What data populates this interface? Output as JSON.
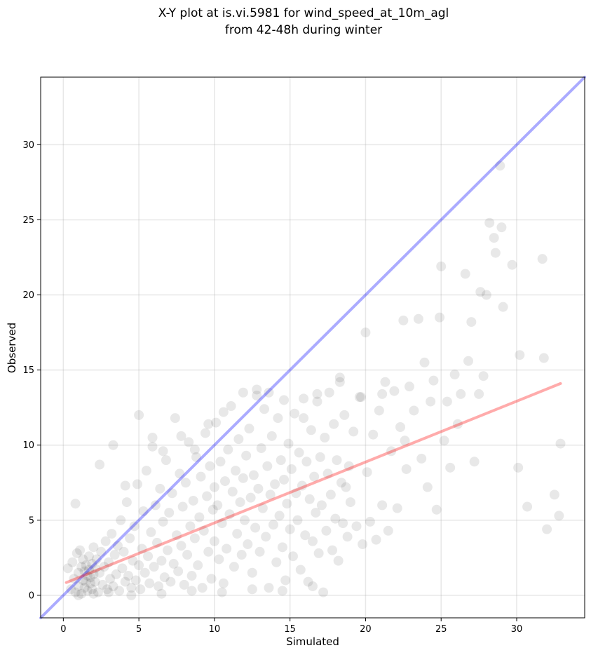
{
  "chart_data": {
    "type": "scatter",
    "title_line1": "X-Y plot at is.vi.5981 for wind_speed_at_10m_agl",
    "title_line2": "from 42-48h during winter",
    "xlabel": "Simulated",
    "ylabel": "Observed",
    "xlim": [
      -1.5,
      34.5
    ],
    "ylim": [
      -1.5,
      34.5
    ],
    "xticks": [
      0,
      5,
      10,
      15,
      20,
      25,
      30
    ],
    "yticks": [
      0,
      5,
      10,
      15,
      20,
      25,
      30
    ],
    "grid": true,
    "point_color": "#000000",
    "point_opacity": 0.09,
    "identity_line": {
      "color": "#0000ff",
      "opacity": 0.33,
      "x": [
        -1.5,
        34.5
      ],
      "y": [
        -1.5,
        34.5
      ]
    },
    "fit_line": {
      "color": "#ff0000",
      "opacity": 0.33,
      "x": [
        0.2,
        32.9
      ],
      "y": [
        0.85,
        14.1
      ]
    },
    "points": [
      [
        0.3,
        1.8
      ],
      [
        0.5,
        0.4
      ],
      [
        0.6,
        2.2
      ],
      [
        0.7,
        1.1
      ],
      [
        0.8,
        0.2
      ],
      [
        0.9,
        2.8
      ],
      [
        1.0,
        1.5
      ],
      [
        1.0,
        0.6
      ],
      [
        1.1,
        3.0
      ],
      [
        1.2,
        1.9
      ],
      [
        1.2,
        0.1
      ],
      [
        1.3,
        2.4
      ],
      [
        1.3,
        1.0
      ],
      [
        1.4,
        0.5
      ],
      [
        1.4,
        1.6
      ],
      [
        1.5,
        2.0
      ],
      [
        1.5,
        0.9
      ],
      [
        1.6,
        1.3
      ],
      [
        1.6,
        0.3
      ],
      [
        1.7,
        2.6
      ],
      [
        1.7,
        1.7
      ],
      [
        1.8,
        0.8
      ],
      [
        1.8,
        1.2
      ],
      [
        1.9,
        2.1
      ],
      [
        1.9,
        0.4
      ],
      [
        2.0,
        1.4
      ],
      [
        2.0,
        3.2
      ],
      [
        2.1,
        0.9
      ],
      [
        2.1,
        1.8
      ],
      [
        2.2,
        2.4
      ],
      [
        2.3,
        0.2
      ],
      [
        2.4,
        1.5
      ],
      [
        2.5,
        2.9
      ],
      [
        2.6,
        0.7
      ],
      [
        2.7,
        1.9
      ],
      [
        2.8,
        3.6
      ],
      [
        2.9,
        0.4
      ],
      [
        3.0,
        2.2
      ],
      [
        3.1,
        1.1
      ],
      [
        3.2,
        4.1
      ],
      [
        3.3,
        0.6
      ],
      [
        3.4,
        2.7
      ],
      [
        3.5,
        1.4
      ],
      [
        3.6,
        3.3
      ],
      [
        3.7,
        0.3
      ],
      [
        3.8,
        5.0
      ],
      [
        3.9,
        1.8
      ],
      [
        4.0,
        2.9
      ],
      [
        4.1,
        0.9
      ],
      [
        4.2,
        6.2
      ],
      [
        4.3,
        1.3
      ],
      [
        4.4,
        3.8
      ],
      [
        4.5,
        0.5
      ],
      [
        4.6,
        2.3
      ],
      [
        4.7,
        4.6
      ],
      [
        4.8,
        1.0
      ],
      [
        4.9,
        7.4
      ],
      [
        5.0,
        2.0
      ],
      [
        5.0,
        12.0
      ],
      [
        5.1,
        0.4
      ],
      [
        5.2,
        3.1
      ],
      [
        5.3,
        5.6
      ],
      [
        5.4,
        1.5
      ],
      [
        5.5,
        8.3
      ],
      [
        5.6,
        2.6
      ],
      [
        5.7,
        0.8
      ],
      [
        5.8,
        4.2
      ],
      [
        5.9,
        9.9
      ],
      [
        6.0,
        1.9
      ],
      [
        6.1,
        6.0
      ],
      [
        6.2,
        3.5
      ],
      [
        6.3,
        0.6
      ],
      [
        6.4,
        7.1
      ],
      [
        6.5,
        2.3
      ],
      [
        6.6,
        4.9
      ],
      [
        6.7,
        1.2
      ],
      [
        6.8,
        9.0
      ],
      [
        6.9,
        3.0
      ],
      [
        7.0,
        5.5
      ],
      [
        7.1,
        0.9
      ],
      [
        7.2,
        6.8
      ],
      [
        7.3,
        2.1
      ],
      [
        7.4,
        11.8
      ],
      [
        7.5,
        4.0
      ],
      [
        7.6,
        1.6
      ],
      [
        7.7,
        8.1
      ],
      [
        7.8,
        3.3
      ],
      [
        7.9,
        5.9
      ],
      [
        8.0,
        0.7
      ],
      [
        8.1,
        7.5
      ],
      [
        8.2,
        2.7
      ],
      [
        8.3,
        10.2
      ],
      [
        8.4,
        4.6
      ],
      [
        8.5,
        1.3
      ],
      [
        8.6,
        6.3
      ],
      [
        8.7,
        3.8
      ],
      [
        8.8,
        9.2
      ],
      [
        8.9,
        2.0
      ],
      [
        9.0,
        5.2
      ],
      [
        9.1,
        7.9
      ],
      [
        9.2,
        0.5
      ],
      [
        9.3,
        4.3
      ],
      [
        9.4,
        10.8
      ],
      [
        9.5,
        6.6
      ],
      [
        9.6,
        2.9
      ],
      [
        9.7,
        8.6
      ],
      [
        9.8,
        1.1
      ],
      [
        9.9,
        5.7
      ],
      [
        10.0,
        7.2
      ],
      [
        10.0,
        3.6
      ],
      [
        10.1,
        11.5
      ],
      [
        10.2,
        6.0
      ],
      [
        10.3,
        2.4
      ],
      [
        10.4,
        8.9
      ],
      [
        10.5,
        4.8
      ],
      [
        10.6,
        0.8
      ],
      [
        10.7,
        7.6
      ],
      [
        10.8,
        3.1
      ],
      [
        10.9,
        9.7
      ],
      [
        11.0,
        5.4
      ],
      [
        11.1,
        12.6
      ],
      [
        11.2,
        6.9
      ],
      [
        11.3,
        1.9
      ],
      [
        11.4,
        8.3
      ],
      [
        11.5,
        4.1
      ],
      [
        11.6,
        10.4
      ],
      [
        11.7,
        6.2
      ],
      [
        11.8,
        2.7
      ],
      [
        11.9,
        7.8
      ],
      [
        12.0,
        5.0
      ],
      [
        12.1,
        9.3
      ],
      [
        12.2,
        3.4
      ],
      [
        12.3,
        11.1
      ],
      [
        12.4,
        6.5
      ],
      [
        12.5,
        1.5
      ],
      [
        12.6,
        8.0
      ],
      [
        12.7,
        4.5
      ],
      [
        12.8,
        13.3
      ],
      [
        12.9,
        7.1
      ],
      [
        13.0,
        2.9
      ],
      [
        13.1,
        9.8
      ],
      [
        13.2,
        5.8
      ],
      [
        13.3,
        12.4
      ],
      [
        13.4,
        3.9
      ],
      [
        13.5,
        8.6
      ],
      [
        13.6,
        0.5
      ],
      [
        13.7,
        6.7
      ],
      [
        13.8,
        10.6
      ],
      [
        13.9,
        4.7
      ],
      [
        14.0,
        7.4
      ],
      [
        14.1,
        2.2
      ],
      [
        14.2,
        11.8
      ],
      [
        14.3,
        5.3
      ],
      [
        14.4,
        9.0
      ],
      [
        14.5,
        3.2
      ],
      [
        14.6,
        7.7
      ],
      [
        14.7,
        1.0
      ],
      [
        14.8,
        6.1
      ],
      [
        14.9,
        10.1
      ],
      [
        15.0,
        4.4
      ],
      [
        15.1,
        8.4
      ],
      [
        15.2,
        2.6
      ],
      [
        15.3,
        12.1
      ],
      [
        15.4,
        6.8
      ],
      [
        15.5,
        5.0
      ],
      [
        15.6,
        9.5
      ],
      [
        15.7,
        1.7
      ],
      [
        15.8,
        7.3
      ],
      [
        15.9,
        13.1
      ],
      [
        16.0,
        4.0
      ],
      [
        16.1,
        8.9
      ],
      [
        16.2,
        0.9
      ],
      [
        16.3,
        6.4
      ],
      [
        16.4,
        11.0
      ],
      [
        16.5,
        3.6
      ],
      [
        16.6,
        7.9
      ],
      [
        16.7,
        5.5
      ],
      [
        16.8,
        12.9
      ],
      [
        16.9,
        2.8
      ],
      [
        17.0,
        9.2
      ],
      [
        17.1,
        6.0
      ],
      [
        17.2,
        0.2
      ],
      [
        17.3,
        10.5
      ],
      [
        17.4,
        4.3
      ],
      [
        17.5,
        8.1
      ],
      [
        17.6,
        13.5
      ],
      [
        17.7,
        6.7
      ],
      [
        17.8,
        3.0
      ],
      [
        17.9,
        11.4
      ],
      [
        18.0,
        5.1
      ],
      [
        18.1,
        9.0
      ],
      [
        18.2,
        2.3
      ],
      [
        18.3,
        14.5
      ],
      [
        18.4,
        7.5
      ],
      [
        18.5,
        4.8
      ],
      [
        18.6,
        12.0
      ],
      [
        18.7,
        7.2
      ],
      [
        18.8,
        3.9
      ],
      [
        18.9,
        8.6
      ],
      [
        19.0,
        6.2
      ],
      [
        19.2,
        10.9
      ],
      [
        19.4,
        4.6
      ],
      [
        19.6,
        13.2
      ],
      [
        19.8,
        3.4
      ],
      [
        20.0,
        17.5
      ],
      [
        20.1,
        8.2
      ],
      [
        20.3,
        4.9
      ],
      [
        20.5,
        10.7
      ],
      [
        20.7,
        3.7
      ],
      [
        20.9,
        12.3
      ],
      [
        21.1,
        6.0
      ],
      [
        21.3,
        14.2
      ],
      [
        21.5,
        4.3
      ],
      [
        21.7,
        9.6
      ],
      [
        21.9,
        13.6
      ],
      [
        22.1,
        5.8
      ],
      [
        22.3,
        11.2
      ],
      [
        22.5,
        18.3
      ],
      [
        22.7,
        8.4
      ],
      [
        22.9,
        13.9
      ],
      [
        23.2,
        12.3
      ],
      [
        23.5,
        18.4
      ],
      [
        23.7,
        9.1
      ],
      [
        23.9,
        15.5
      ],
      [
        24.1,
        7.2
      ],
      [
        24.3,
        12.9
      ],
      [
        24.5,
        14.3
      ],
      [
        24.7,
        5.7
      ],
      [
        24.9,
        18.5
      ],
      [
        25.0,
        21.9
      ],
      [
        25.2,
        10.3
      ],
      [
        25.4,
        12.9
      ],
      [
        25.6,
        8.5
      ],
      [
        25.9,
        14.7
      ],
      [
        26.1,
        11.4
      ],
      [
        26.3,
        13.4
      ],
      [
        26.6,
        21.4
      ],
      [
        26.8,
        15.6
      ],
      [
        27.0,
        18.2
      ],
      [
        27.2,
        8.9
      ],
      [
        27.5,
        13.4
      ],
      [
        27.6,
        20.2
      ],
      [
        27.8,
        14.6
      ],
      [
        28.0,
        20.0
      ],
      [
        28.2,
        24.8
      ],
      [
        28.5,
        23.8
      ],
      [
        28.6,
        22.8
      ],
      [
        28.9,
        28.6
      ],
      [
        29.0,
        24.5
      ],
      [
        29.1,
        19.2
      ],
      [
        29.7,
        22.0
      ],
      [
        30.1,
        8.5
      ],
      [
        30.2,
        16.0
      ],
      [
        30.7,
        5.9
      ],
      [
        31.7,
        22.4
      ],
      [
        31.8,
        15.8
      ],
      [
        32.0,
        4.4
      ],
      [
        32.5,
        6.7
      ],
      [
        32.8,
        5.3
      ],
      [
        32.9,
        10.1
      ],
      [
        0.8,
        6.1
      ],
      [
        2.4,
        8.7
      ],
      [
        3.3,
        10.0
      ],
      [
        4.1,
        7.3
      ],
      [
        5.9,
        10.5
      ],
      [
        6.6,
        9.6
      ],
      [
        7.8,
        10.6
      ],
      [
        8.7,
        9.7
      ],
      [
        9.6,
        11.4
      ],
      [
        10.6,
        12.2
      ],
      [
        11.9,
        13.5
      ],
      [
        12.8,
        13.7
      ],
      [
        13.6,
        13.5
      ],
      [
        14.6,
        13.0
      ],
      [
        15.9,
        11.8
      ],
      [
        16.8,
        13.4
      ],
      [
        18.3,
        14.2
      ],
      [
        19.7,
        13.2
      ],
      [
        21.1,
        13.4
      ],
      [
        22.6,
        10.3
      ],
      [
        1.0,
        0.0
      ],
      [
        2.0,
        0.1
      ],
      [
        3.0,
        0.2
      ],
      [
        4.5,
        0.0
      ],
      [
        6.5,
        0.1
      ],
      [
        8.5,
        0.3
      ],
      [
        10.5,
        0.2
      ],
      [
        12.5,
        0.4
      ],
      [
        14.5,
        0.3
      ],
      [
        16.5,
        0.6
      ]
    ]
  }
}
